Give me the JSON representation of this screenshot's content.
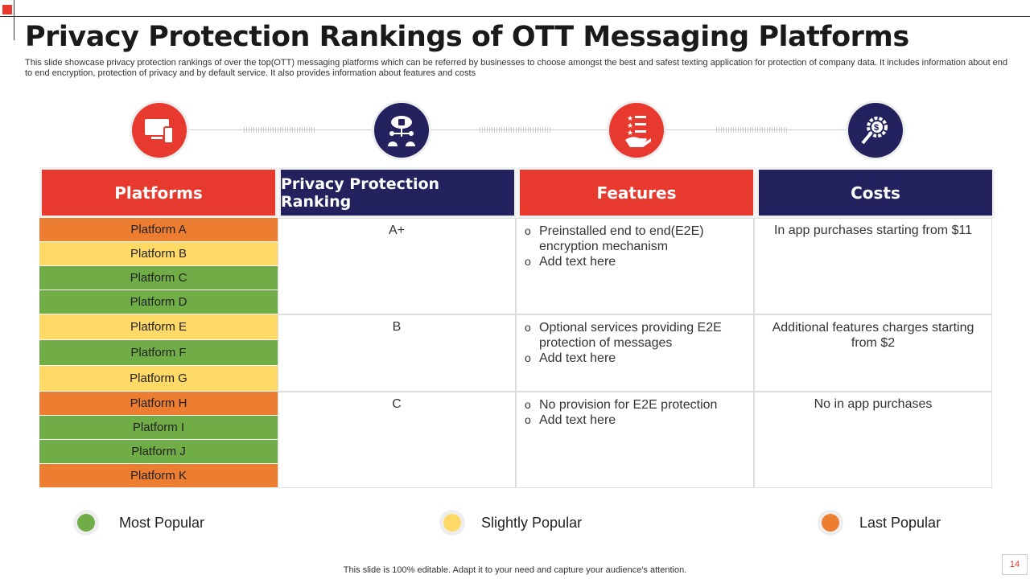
{
  "title": "Privacy Protection Rankings of OTT Messaging Platforms",
  "subtitle": "This slide showcase privacy protection rankings of over the top(OTT) messaging platforms which can be referred by businesses to choose amongst the best and safest texting application for protection of company data. It includes information about end to end encryption, protection of privacy  and by default service. It also provides information about features and costs",
  "colors": {
    "red": "#e8392f",
    "navy": "#23215e",
    "orange": "#ed7d31",
    "yellow": "#ffd966",
    "green": "#70ad47"
  },
  "icons": [
    "monitor-phone-icon",
    "cloud-lock-network-icon",
    "rating-hand-icon",
    "dollar-gear-search-icon"
  ],
  "headers": [
    "Platforms",
    "Privacy Protection Ranking",
    "Features",
    "Costs"
  ],
  "platforms": [
    {
      "name": "Platform A",
      "popularity": "Last Popular"
    },
    {
      "name": "Platform B",
      "popularity": "Slightly Popular"
    },
    {
      "name": "Platform C",
      "popularity": "Most Popular"
    },
    {
      "name": "Platform D",
      "popularity": "Most Popular"
    },
    {
      "name": "Platform E",
      "popularity": "Slightly Popular"
    },
    {
      "name": "Platform F",
      "popularity": "Most Popular"
    },
    {
      "name": "Platform G",
      "popularity": "Slightly Popular"
    },
    {
      "name": "Platform H",
      "popularity": "Last Popular"
    },
    {
      "name": "Platform I",
      "popularity": "Most Popular"
    },
    {
      "name": "Platform J",
      "popularity": "Most Popular"
    },
    {
      "name": "Platform K",
      "popularity": "Last Popular"
    }
  ],
  "groups": [
    {
      "ranking": "A+",
      "features": [
        "Preinstalled end to end(E2E) encryption mechanism",
        "Add text here"
      ],
      "cost": "In app purchases starting from $11"
    },
    {
      "ranking": "B",
      "features": [
        "Optional services providing E2E protection of messages",
        "Add text here"
      ],
      "cost": "Additional features charges starting from $2"
    },
    {
      "ranking": "C",
      "features": [
        "No provision for E2E protection",
        "Add text here"
      ],
      "cost": "No in app purchases"
    }
  ],
  "legend": [
    {
      "label": "Most Popular",
      "color": "#70ad47"
    },
    {
      "label": "Slightly Popular",
      "color": "#ffd966"
    },
    {
      "label": "Last Popular",
      "color": "#ed7d31"
    }
  ],
  "footer": "This slide is 100% editable. Adapt it to your need and capture your audience's attention.",
  "page_number": "14"
}
